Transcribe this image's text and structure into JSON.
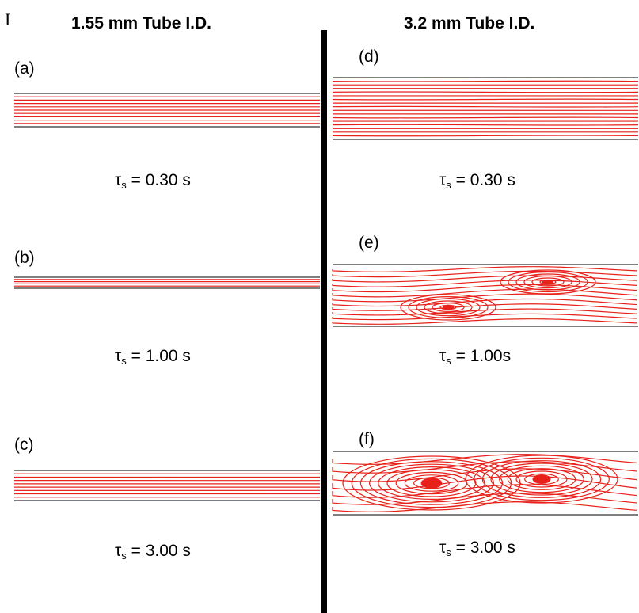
{
  "corner_mark": "I",
  "columns": [
    {
      "title": "1.55 mm Tube I.D."
    },
    {
      "title": "3.2 mm Tube I.D."
    }
  ],
  "panels": [
    {
      "label": "(a)",
      "tau_sym": "τ",
      "tau_sub": "s",
      "tau_rest": " = 0.30 s"
    },
    {
      "label": "(b)",
      "tau_sym": "τ",
      "tau_sub": "s",
      "tau_rest": " = 1.00 s"
    },
    {
      "label": "(c)",
      "tau_sym": "τ",
      "tau_sub": "s",
      "tau_rest": " = 3.00 s"
    },
    {
      "label": "(d)",
      "tau_sym": "τ",
      "tau_sub": "s",
      "tau_rest": " = 0.30 s"
    },
    {
      "label": "(e)",
      "tau_sym": "τ",
      "tau_sub": "s",
      "tau_rest": " = 1.00s"
    },
    {
      "label": "(f)",
      "tau_sym": "τ",
      "tau_sub": "s",
      "tau_rest": " = 3.00 s"
    }
  ],
  "colors": {
    "streamline": "#e8211a",
    "wall": "#555555",
    "divider": "#000000"
  }
}
